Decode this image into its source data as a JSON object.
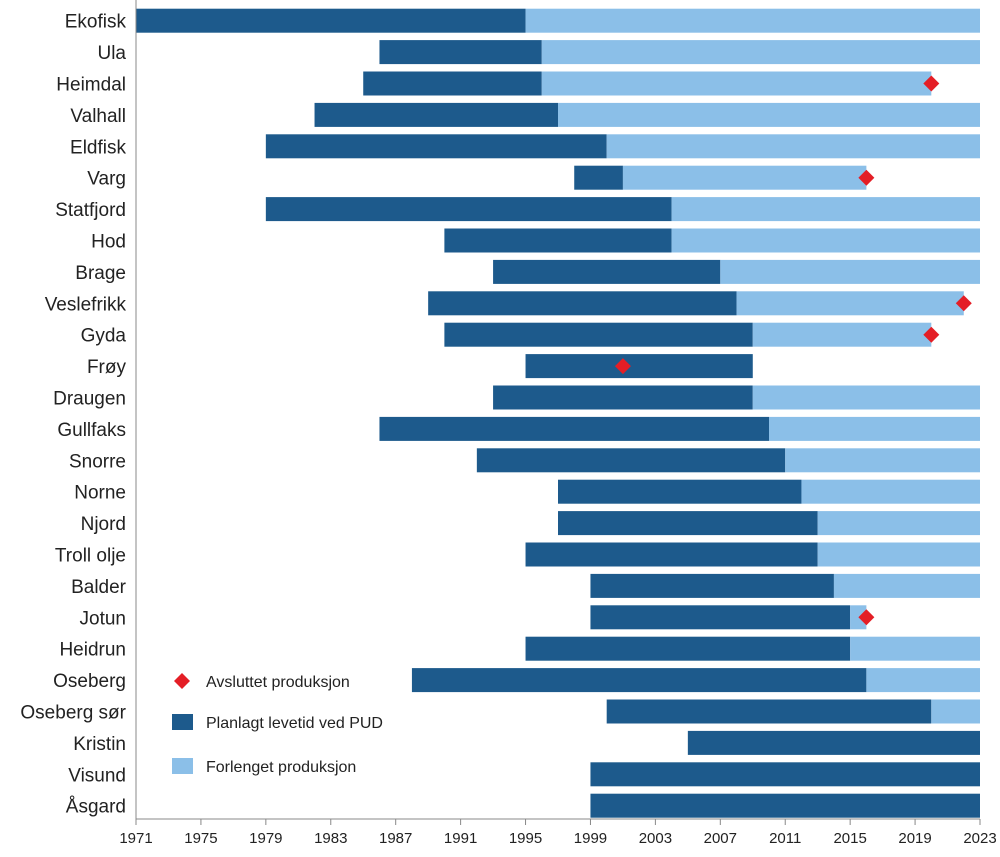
{
  "chart_data": {
    "type": "bar",
    "orientation": "horizontal-timeline",
    "title": "",
    "xlabel": "",
    "ylabel": "",
    "xlim": [
      1971,
      2023
    ],
    "x_ticks": [
      1971,
      1975,
      1979,
      1983,
      1987,
      1991,
      1995,
      1999,
      2003,
      2007,
      2011,
      2015,
      2019,
      2023
    ],
    "grid": false,
    "legend_position": "bottom-left",
    "colors": {
      "planned": "#1d5a8c",
      "extended": "#8bbfe8",
      "ended": "#e41e26"
    },
    "legend": [
      {
        "key": "ended",
        "label": "Avsluttet produksjon",
        "marker": "diamond"
      },
      {
        "key": "planned",
        "label": "Planlagt levetid ved PUD",
        "marker": "bar"
      },
      {
        "key": "extended",
        "label": "Forlenget produksjon",
        "marker": "bar"
      }
    ],
    "categories": [
      "Ekofisk",
      "Ula",
      "Heimdal",
      "Valhall",
      "Eldfisk",
      "Varg",
      "Statfjord",
      "Hod",
      "Brage",
      "Veslefrikk",
      "Gyda",
      "Frøy",
      "Draugen",
      "Gullfaks",
      "Snorre",
      "Norne",
      "Njord",
      "Troll olje",
      "Balder",
      "Jotun",
      "Heidrun",
      "Oseberg",
      "Oseberg sør",
      "Kristin",
      "Visund",
      "Åsgard"
    ],
    "fields": [
      {
        "name": "Ekofisk",
        "start": 1971,
        "planned_end": 1995,
        "extended_end": 2023,
        "ended": null
      },
      {
        "name": "Ula",
        "start": 1986,
        "planned_end": 1996,
        "extended_end": 2023,
        "ended": null
      },
      {
        "name": "Heimdal",
        "start": 1985,
        "planned_end": 1996,
        "extended_end": 2020,
        "ended": 2020
      },
      {
        "name": "Valhall",
        "start": 1982,
        "planned_end": 1997,
        "extended_end": 2023,
        "ended": null
      },
      {
        "name": "Eldfisk",
        "start": 1979,
        "planned_end": 2000,
        "extended_end": 2023,
        "ended": null
      },
      {
        "name": "Varg",
        "start": 1998,
        "planned_end": 2001,
        "extended_end": 2016,
        "ended": 2016
      },
      {
        "name": "Statfjord",
        "start": 1979,
        "planned_end": 2004,
        "extended_end": 2023,
        "ended": null
      },
      {
        "name": "Hod",
        "start": 1990,
        "planned_end": 2004,
        "extended_end": 2023,
        "ended": null
      },
      {
        "name": "Brage",
        "start": 1993,
        "planned_end": 2007,
        "extended_end": 2023,
        "ended": null
      },
      {
        "name": "Veslefrikk",
        "start": 1989,
        "planned_end": 2008,
        "extended_end": 2022,
        "ended": 2022
      },
      {
        "name": "Gyda",
        "start": 1990,
        "planned_end": 2009,
        "extended_end": 2020,
        "ended": 2020
      },
      {
        "name": "Frøy",
        "start": 1995,
        "planned_end": 2009,
        "extended_end": 2009,
        "ended": 2001
      },
      {
        "name": "Draugen",
        "start": 1993,
        "planned_end": 2009,
        "extended_end": 2023,
        "ended": null
      },
      {
        "name": "Gullfaks",
        "start": 1986,
        "planned_end": 2010,
        "extended_end": 2023,
        "ended": null
      },
      {
        "name": "Snorre",
        "start": 1992,
        "planned_end": 2011,
        "extended_end": 2023,
        "ended": null
      },
      {
        "name": "Norne",
        "start": 1997,
        "planned_end": 2012,
        "extended_end": 2023,
        "ended": null
      },
      {
        "name": "Njord",
        "start": 1997,
        "planned_end": 2013,
        "extended_end": 2023,
        "ended": null
      },
      {
        "name": "Troll olje",
        "start": 1995,
        "planned_end": 2013,
        "extended_end": 2023,
        "ended": null
      },
      {
        "name": "Balder",
        "start": 1999,
        "planned_end": 2014,
        "extended_end": 2023,
        "ended": null
      },
      {
        "name": "Jotun",
        "start": 1999,
        "planned_end": 2015,
        "extended_end": 2016,
        "ended": 2016
      },
      {
        "name": "Heidrun",
        "start": 1995,
        "planned_end": 2015,
        "extended_end": 2023,
        "ended": null
      },
      {
        "name": "Oseberg",
        "start": 1988,
        "planned_end": 2016,
        "extended_end": 2023,
        "ended": null
      },
      {
        "name": "Oseberg sør",
        "start": 2000,
        "planned_end": 2020,
        "extended_end": 2023,
        "ended": null
      },
      {
        "name": "Kristin",
        "start": 2005,
        "planned_end": 2023,
        "extended_end": 2023,
        "ended": null
      },
      {
        "name": "Visund",
        "start": 1999,
        "planned_end": 2023,
        "extended_end": 2023,
        "ended": null
      },
      {
        "name": "Åsgard",
        "start": 1999,
        "planned_end": 2023,
        "extended_end": 2023,
        "ended": null
      }
    ]
  }
}
